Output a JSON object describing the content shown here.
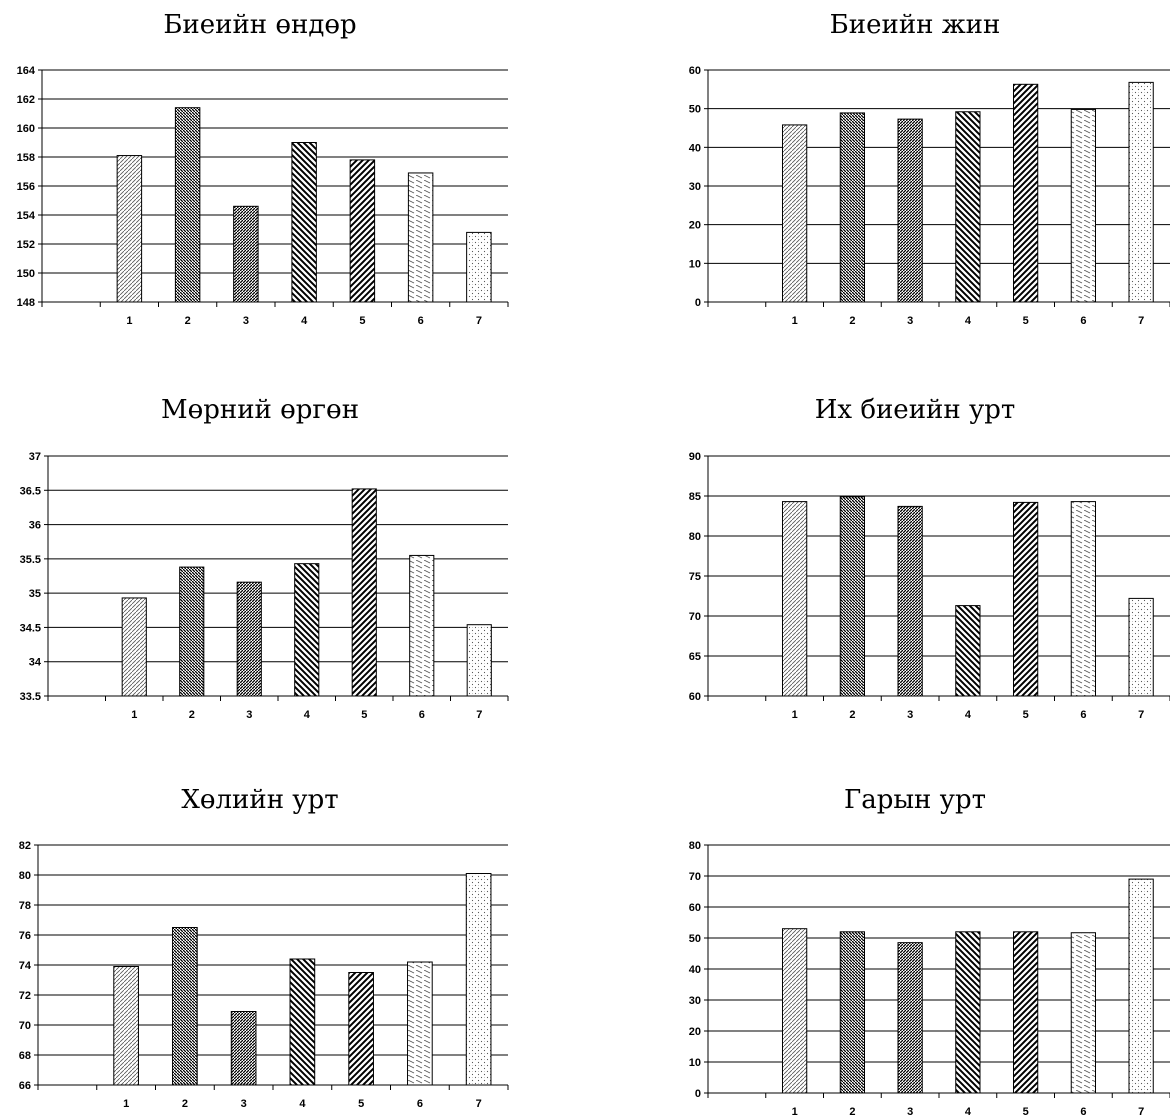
{
  "chart_data": [
    {
      "type": "bar",
      "title": "Биеийн өндөр",
      "categories": [
        "1",
        "2",
        "3",
        "4",
        "5",
        "6",
        "7"
      ],
      "values": [
        158.1,
        161.4,
        154.6,
        159.0,
        157.8,
        156.9,
        152.8
      ],
      "ylim": [
        148,
        164
      ],
      "yticks": [
        148,
        150,
        152,
        154,
        156,
        158,
        160,
        162,
        164
      ],
      "grid": true
    },
    {
      "type": "bar",
      "title": "Биеийн жин",
      "categories": [
        "1",
        "2",
        "3",
        "4",
        "5",
        "6",
        "7"
      ],
      "values": [
        45.8,
        48.9,
        47.3,
        49.2,
        56.3,
        49.8,
        56.8
      ],
      "ylim": [
        0,
        60
      ],
      "yticks": [
        0,
        10,
        20,
        30,
        40,
        50,
        60
      ],
      "grid": true
    },
    {
      "type": "bar",
      "title": "Мөрний өргөн",
      "categories": [
        "1",
        "2",
        "3",
        "4",
        "5",
        "6",
        "7"
      ],
      "values": [
        34.93,
        35.38,
        35.16,
        35.43,
        36.52,
        35.55,
        34.54
      ],
      "ylim": [
        33.5,
        37
      ],
      "yticks": [
        33.5,
        34,
        34.5,
        35,
        35.5,
        36,
        36.5,
        37
      ],
      "grid": true
    },
    {
      "type": "bar",
      "title": "Их биеийн урт",
      "categories": [
        "1",
        "2",
        "3",
        "4",
        "5",
        "6",
        "7"
      ],
      "values": [
        84.3,
        84.9,
        83.7,
        71.3,
        84.2,
        84.3,
        72.2
      ],
      "ylim": [
        60,
        90
      ],
      "yticks": [
        60,
        65,
        70,
        75,
        80,
        85,
        90
      ],
      "grid": true
    },
    {
      "type": "bar",
      "title": "Хөлийн урт",
      "categories": [
        "1",
        "2",
        "3",
        "4",
        "5",
        "6",
        "7"
      ],
      "values": [
        73.9,
        76.5,
        70.9,
        74.4,
        73.5,
        74.2,
        80.1
      ],
      "ylim": [
        66,
        82
      ],
      "yticks": [
        66,
        68,
        70,
        72,
        74,
        76,
        78,
        80,
        82
      ],
      "grid": true
    },
    {
      "type": "bar",
      "title": "Гарын урт",
      "categories": [
        "1",
        "2",
        "3",
        "4",
        "5",
        "6",
        "7"
      ],
      "values": [
        53.0,
        52.0,
        48.5,
        52.0,
        52.0,
        51.7,
        69.0
      ],
      "ylim": [
        0,
        80
      ],
      "yticks": [
        0,
        10,
        20,
        30,
        40,
        50,
        60,
        70,
        80
      ],
      "grid": true
    }
  ]
}
